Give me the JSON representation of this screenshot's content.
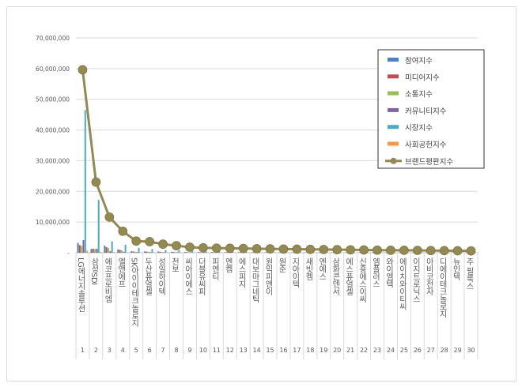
{
  "chart_data": {
    "type": "bar+line",
    "title": "",
    "categories": [
      "LG에너지솔루션",
      "삼성SDI",
      "에코프로비엠",
      "엘앤에프",
      "SK아이이테크놀로지",
      "두산퓨얼셀",
      "성일하이텍",
      "천보",
      "씨아이에스",
      "더블유씨피",
      "피엔티",
      "엔켐",
      "에스피지",
      "대보마그네틱",
      "원익피앤이",
      "원준",
      "지아이텍",
      "새빗켐",
      "엔에스",
      "삼화콘덴서",
      "에스퓨얼셀",
      "신흥에스이씨",
      "엠플러스",
      "와이엠텍",
      "에이치와이티씨",
      "이지트로닉스",
      "아비코전자",
      "디에이테크놀로지",
      "뉴인텍",
      "주 필룩스"
    ],
    "index_labels": [
      "1",
      "2",
      "3",
      "4",
      "5",
      "6",
      "7",
      "8",
      "9",
      "10",
      "11",
      "12",
      "13",
      "14",
      "15",
      "16",
      "17",
      "18",
      "19",
      "20",
      "21",
      "22",
      "23",
      "24",
      "25",
      "26",
      "27",
      "28",
      "29",
      "30"
    ],
    "ylim": [
      0,
      70000000
    ],
    "yticks": [
      "-",
      "10,000,000",
      "20,000,000",
      "30,000,000",
      "40,000,000",
      "50,000,000",
      "60,000,000",
      "70,000,000"
    ],
    "grid": true,
    "legend_position": "top-right",
    "series": [
      {
        "name": "참여지수",
        "type": "bar",
        "color": "#4f81bd",
        "values": [
          3200000,
          1200000,
          2300000,
          1100000,
          500000,
          450000,
          400000,
          300000,
          250000,
          200000,
          200000,
          180000,
          170000,
          150000,
          150000,
          140000,
          130000,
          120000,
          120000,
          110000,
          100000,
          100000,
          90000,
          90000,
          80000,
          80000,
          70000,
          70000,
          60000,
          60000
        ]
      },
      {
        "name": "미디어지수",
        "type": "bar",
        "color": "#c0504d",
        "values": [
          2500000,
          1300000,
          1800000,
          900000,
          400000,
          350000,
          300000,
          250000,
          200000,
          180000,
          150000,
          150000,
          140000,
          130000,
          120000,
          110000,
          100000,
          100000,
          90000,
          90000,
          80000,
          80000,
          70000,
          70000,
          60000,
          60000,
          50000,
          50000,
          50000,
          40000
        ]
      },
      {
        "name": "소통지수",
        "type": "bar",
        "color": "#9bbb59",
        "values": [
          2200000,
          1200000,
          1500000,
          800000,
          300000,
          300000,
          250000,
          200000,
          150000,
          150000,
          120000,
          120000,
          110000,
          100000,
          100000,
          90000,
          90000,
          80000,
          80000,
          70000,
          70000,
          60000,
          60000,
          60000,
          50000,
          50000,
          50000,
          40000,
          40000,
          40000
        ]
      },
      {
        "name": "커뮤니티지수",
        "type": "bar",
        "color": "#8064a2",
        "values": [
          4100000,
          1300000,
          500000,
          300000,
          200000,
          200000,
          150000,
          150000,
          120000,
          100000,
          100000,
          90000,
          90000,
          80000,
          80000,
          70000,
          70000,
          60000,
          60000,
          50000,
          50000,
          50000,
          40000,
          40000,
          40000,
          30000,
          30000,
          30000,
          30000,
          20000
        ]
      },
      {
        "name": "시장지수",
        "type": "bar",
        "color": "#4bacc6",
        "values": [
          46500000,
          17200000,
          3700000,
          2600000,
          1600000,
          1200000,
          900000,
          800000,
          600000,
          500000,
          450000,
          400000,
          380000,
          350000,
          330000,
          300000,
          280000,
          260000,
          250000,
          240000,
          220000,
          200000,
          190000,
          180000,
          170000,
          160000,
          150000,
          140000,
          130000,
          120000
        ]
      },
      {
        "name": "사회공헌지수",
        "type": "bar",
        "color": "#f79646",
        "values": [
          700000,
          300000,
          200000,
          100000,
          100000,
          80000,
          70000,
          60000,
          50000,
          50000,
          40000,
          40000,
          40000,
          30000,
          30000,
          30000,
          30000,
          20000,
          20000,
          20000,
          20000,
          20000,
          20000,
          10000,
          10000,
          10000,
          10000,
          10000,
          10000,
          10000
        ]
      },
      {
        "name": "브랜드평판지수",
        "type": "line",
        "color": "#938953",
        "values": [
          59600000,
          23000000,
          11600000,
          7000000,
          3800000,
          3600000,
          2800000,
          2300000,
          1800000,
          1600000,
          1500000,
          1450000,
          1400000,
          1300000,
          1250000,
          1200000,
          1150000,
          1100000,
          1050000,
          1000000,
          950000,
          900000,
          850000,
          820000,
          800000,
          760000,
          720000,
          680000,
          640000,
          600000
        ]
      }
    ]
  }
}
